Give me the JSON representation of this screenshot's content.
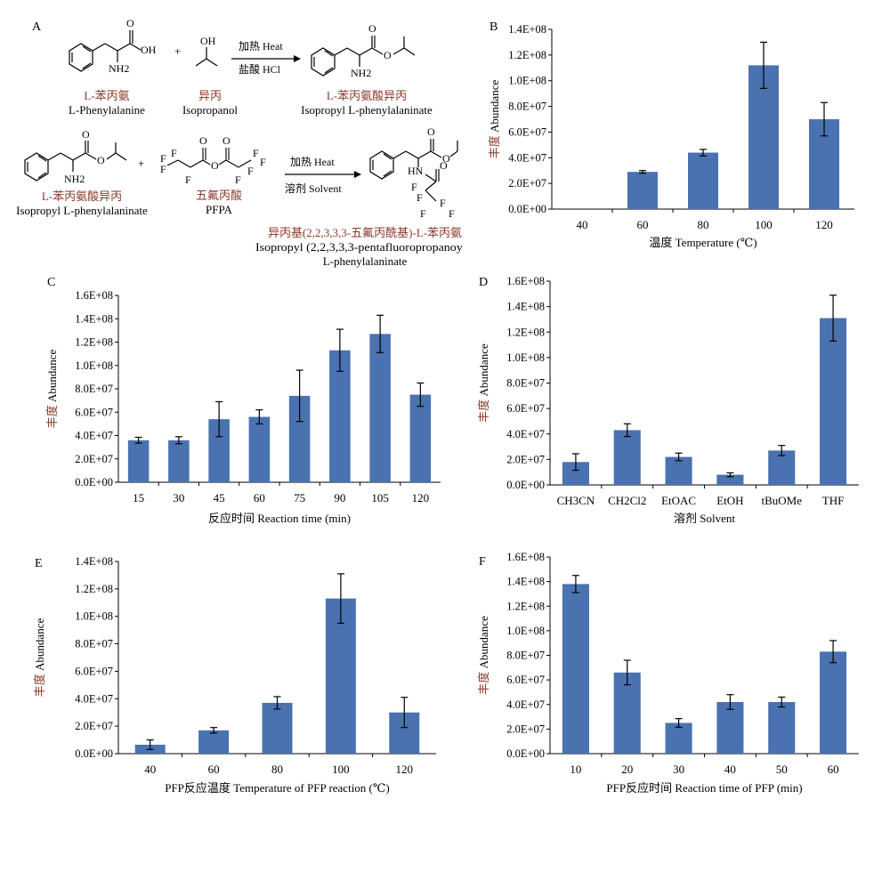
{
  "panel_a": {
    "letter": "A",
    "row1": {
      "reactant1": {
        "cn": "L-苯丙氨",
        "en": "L-Phenylalanine"
      },
      "plus": "+",
      "reactant2": {
        "cn": "异丙",
        "en": "Isopropanol"
      },
      "cond_top": "加热 Heat",
      "cond_bottom": "盐酸 HCl",
      "product": {
        "cn": "L-苯丙氨酸异丙",
        "en": "Isopropyl L-phenylalaninate"
      }
    },
    "row2": {
      "reactant1": {
        "cn": "L-苯丙氨酸异丙",
        "en": "Isopropyl L-phenylalaninate"
      },
      "plus": "+",
      "reactant2": {
        "cn": "五氟丙酸",
        "en": "PFPA"
      },
      "cond_top": "加热 Heat",
      "cond_bottom": "溶剂 Solvent",
      "product": {
        "cn": "异丙基(2,2,3,3,3-五氟丙酰基)-L-苯丙氨",
        "en1": "Isopropyl (2,2,3,3,3-pentafluoropropanoyl)-",
        "en2": "L-phenylalaninate"
      }
    },
    "atoms": {
      "oh": "OH",
      "o": "O",
      "nh2": "NH2",
      "hn": "HN",
      "f": "F"
    }
  },
  "chart_data": [
    {
      "panel": "B",
      "type": "bar",
      "categories": [
        "40",
        "60",
        "80",
        "100",
        "120"
      ],
      "values": [
        0,
        29000000.0,
        44000000.0,
        112000000.0,
        70000000.0
      ],
      "errors": [
        0,
        1000000.0,
        2500000.0,
        18000000.0,
        13000000.0
      ],
      "ylim": [
        0,
        140000000.0
      ],
      "yticks": [
        "0.0E+00",
        "2.0E+07",
        "4.0E+07",
        "6.0E+07",
        "8.0E+07",
        "1.0E+08",
        "1.2E+08",
        "1.4E+08"
      ],
      "ylabel_cn": "丰度",
      "ylabel_en": "Abundance",
      "xlabel": "温度 Temperature (℃)",
      "bar_color": "#4a72b0"
    },
    {
      "panel": "C",
      "type": "bar",
      "categories": [
        "15",
        "30",
        "45",
        "60",
        "75",
        "90",
        "105",
        "120"
      ],
      "values": [
        36000000.0,
        36000000.0,
        54000000.0,
        56000000.0,
        74000000.0,
        113000000.0,
        127000000.0,
        75000000.0
      ],
      "errors": [
        2500000.0,
        3000000.0,
        15000000.0,
        6000000.0,
        22000000.0,
        18000000.0,
        16000000.0,
        10000000.0
      ],
      "ylim": [
        0,
        160000000.0
      ],
      "yticks": [
        "0.0E+00",
        "2.0E+07",
        "4.0E+07",
        "6.0E+07",
        "8.0E+07",
        "1.0E+08",
        "1.2E+08",
        "1.4E+08",
        "1.6E+08"
      ],
      "ylabel_cn": "丰度",
      "ylabel_en": "Abundance",
      "xlabel": "反应时间 Reaction time (min)",
      "bar_color": "#4a72b0"
    },
    {
      "panel": "D",
      "type": "bar",
      "categories": [
        "CH3CN",
        "CH2Cl2",
        "EtOAC",
        "EtOH",
        "tBuOMe",
        "THF"
      ],
      "values": [
        18000000.0,
        43000000.0,
        22000000.0,
        8000000.0,
        27000000.0,
        131000000.0
      ],
      "errors": [
        6500000.0,
        5000000.0,
        3000000.0,
        1500000.0,
        4000000.0,
        18000000.0
      ],
      "ylim": [
        0,
        160000000.0
      ],
      "yticks": [
        "0.0E+00",
        "2.0E+07",
        "4.0E+07",
        "6.0E+07",
        "8.0E+07",
        "1.0E+08",
        "1.2E+08",
        "1.4E+08",
        "1.6E+08"
      ],
      "ylabel_cn": "丰度",
      "ylabel_en": "Abundance",
      "xlabel": "溶剂 Solvent",
      "bar_color": "#4a72b0"
    },
    {
      "panel": "E",
      "type": "bar",
      "categories": [
        "40",
        "60",
        "80",
        "100",
        "120"
      ],
      "values": [
        6500000.0,
        17000000.0,
        37000000.0,
        113000000.0,
        30000000.0
      ],
      "errors": [
        3500000.0,
        2000000.0,
        4500000.0,
        18000000.0,
        11000000.0
      ],
      "ylim": [
        0,
        140000000.0
      ],
      "yticks": [
        "0.0E+00",
        "2.0E+07",
        "4.0E+07",
        "6.0E+07",
        "8.0E+07",
        "1.0E+08",
        "1.2E+08",
        "1.4E+08"
      ],
      "ylabel_cn": "丰度",
      "ylabel_en": "Abundance",
      "xlabel": "PFP反应温度 Temperature of PFP reaction (℃)",
      "bar_color": "#4a72b0"
    },
    {
      "panel": "F",
      "type": "bar",
      "categories": [
        "10",
        "20",
        "30",
        "40",
        "50",
        "60"
      ],
      "values": [
        138000000.0,
        66000000.0,
        25000000.0,
        42000000.0,
        42000000.0,
        83000000.0
      ],
      "errors": [
        7000000.0,
        10000000.0,
        3500000.0,
        6000000.0,
        4000000.0,
        9000000.0
      ],
      "ylim": [
        0,
        160000000.0
      ],
      "yticks": [
        "0.0E+00",
        "2.0E+07",
        "4.0E+07",
        "6.0E+07",
        "8.0E+07",
        "1.0E+08",
        "1.2E+08",
        "1.4E+08",
        "1.6E+08"
      ],
      "ylabel_cn": "丰度",
      "ylabel_en": "Abundance",
      "xlabel": "PFP反应时间 Reaction time of PFP (min)",
      "bar_color": "#4a72b0"
    }
  ]
}
